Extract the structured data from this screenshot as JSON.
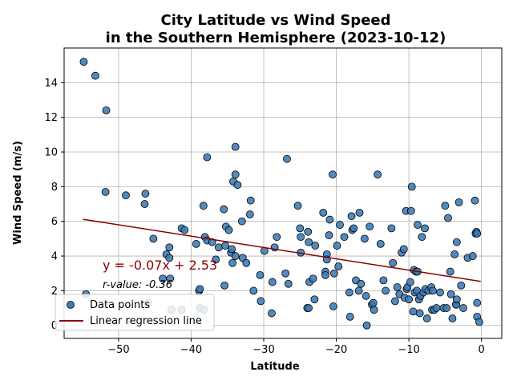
{
  "chart_data": {
    "type": "scatter",
    "title_lines": [
      "City Latitude vs Wind Speed",
      "in the Southern Hemisphere (2023-10-12)"
    ],
    "xlabel": "Latitude",
    "ylabel": "Wind Speed (m/s)",
    "xlim": [
      -57.5,
      2.8
    ],
    "ylim": [
      -0.75,
      16.0
    ],
    "xticks": [
      -50,
      -40,
      -30,
      -20,
      -10,
      0
    ],
    "yticks": [
      0,
      2,
      4,
      6,
      8,
      10,
      12,
      14
    ],
    "xtick_labels": [
      "−50",
      "−40",
      "−30",
      "−20",
      "−10",
      "0"
    ],
    "ytick_labels": [
      "0",
      "2",
      "4",
      "6",
      "8",
      "10",
      "12",
      "14"
    ],
    "grid": true,
    "legend_position": "lower-left",
    "colors": {
      "point_fill": "#3a7ab5",
      "point_edge": "#000000",
      "regression_line": "#8b0000",
      "equation_text": "#8b0000",
      "grid": "#b0b0b0"
    },
    "series": [
      {
        "name": "Data points",
        "points": [
          [
            -54.8,
            15.2
          ],
          [
            -53.2,
            14.4
          ],
          [
            -51.7,
            12.4
          ],
          [
            -51.8,
            7.7
          ],
          [
            -49.0,
            7.5
          ],
          [
            -54.5,
            1.8
          ],
          [
            -46.3,
            7.6
          ],
          [
            -46.4,
            7.0
          ],
          [
            -45.2,
            5.0
          ],
          [
            -45.9,
            1.3
          ],
          [
            -43.9,
            2.7
          ],
          [
            -42.9,
            2.7
          ],
          [
            -43.4,
            4.1
          ],
          [
            -43.0,
            4.5
          ],
          [
            -43.0,
            3.9
          ],
          [
            -42.7,
            0.9
          ],
          [
            -41.3,
            0.9
          ],
          [
            -41.3,
            5.6
          ],
          [
            -40.9,
            5.5
          ],
          [
            -39.3,
            4.7
          ],
          [
            -38.9,
            2.0
          ],
          [
            -38.8,
            2.1
          ],
          [
            -38.8,
            1.0
          ],
          [
            -38.2,
            0.9
          ],
          [
            -38.3,
            6.9
          ],
          [
            -38.1,
            5.1
          ],
          [
            -37.8,
            9.7
          ],
          [
            -37.8,
            4.9
          ],
          [
            -37.1,
            4.8
          ],
          [
            -36.6,
            3.8
          ],
          [
            -36.2,
            4.5
          ],
          [
            -35.5,
            6.7
          ],
          [
            -35.4,
            2.3
          ],
          [
            -35.3,
            4.6
          ],
          [
            -35.2,
            5.7
          ],
          [
            -34.8,
            5.5
          ],
          [
            -34.5,
            4.2
          ],
          [
            -34.4,
            4.4
          ],
          [
            -34.3,
            3.6
          ],
          [
            -34.2,
            8.3
          ],
          [
            -33.9,
            10.3
          ],
          [
            -33.9,
            8.7
          ],
          [
            -33.9,
            4.0
          ],
          [
            -33.6,
            8.1
          ],
          [
            -33.0,
            6.0
          ],
          [
            -32.9,
            3.9
          ],
          [
            -32.4,
            3.6
          ],
          [
            -31.9,
            6.4
          ],
          [
            -31.8,
            7.2
          ],
          [
            -31.4,
            2.0
          ],
          [
            -30.5,
            2.9
          ],
          [
            -30.4,
            1.4
          ],
          [
            -29.9,
            4.3
          ],
          [
            -28.9,
            0.7
          ],
          [
            -28.8,
            2.5
          ],
          [
            -28.5,
            4.5
          ],
          [
            -28.2,
            5.1
          ],
          [
            -27.0,
            3.0
          ],
          [
            -26.8,
            9.6
          ],
          [
            -26.6,
            2.4
          ],
          [
            -25.3,
            6.9
          ],
          [
            -25.0,
            5.6
          ],
          [
            -24.9,
            5.1
          ],
          [
            -24.9,
            4.2
          ],
          [
            -24.0,
            1.0
          ],
          [
            -23.9,
            5.4
          ],
          [
            -23.8,
            4.8
          ],
          [
            -23.8,
            1.0
          ],
          [
            -23.7,
            2.5
          ],
          [
            -23.2,
            2.7
          ],
          [
            -23.0,
            1.5
          ],
          [
            -22.9,
            4.6
          ],
          [
            -21.8,
            6.5
          ],
          [
            -21.5,
            3.1
          ],
          [
            -21.5,
            2.9
          ],
          [
            -21.3,
            4.1
          ],
          [
            -21.3,
            3.8
          ],
          [
            -21.0,
            5.2
          ],
          [
            -20.9,
            6.1
          ],
          [
            -20.5,
            8.7
          ],
          [
            -20.4,
            1.1
          ],
          [
            -20.3,
            3.0
          ],
          [
            -19.9,
            4.6
          ],
          [
            -19.7,
            3.4
          ],
          [
            -19.5,
            5.8
          ],
          [
            -18.9,
            5.1
          ],
          [
            -18.2,
            1.9
          ],
          [
            -18.1,
            0.5
          ],
          [
            -17.9,
            6.3
          ],
          [
            -17.8,
            5.5
          ],
          [
            -17.6,
            5.6
          ],
          [
            -17.3,
            2.6
          ],
          [
            -16.8,
            6.5
          ],
          [
            -16.9,
            2.0
          ],
          [
            -16.6,
            2.4
          ],
          [
            -16.1,
            5.0
          ],
          [
            -15.9,
            1.7
          ],
          [
            -15.8,
            0.0
          ],
          [
            -15.4,
            5.7
          ],
          [
            -15.1,
            1.2
          ],
          [
            -14.9,
            1.3
          ],
          [
            -14.8,
            0.9
          ],
          [
            -14.3,
            8.7
          ],
          [
            -13.9,
            4.7
          ],
          [
            -13.5,
            2.6
          ],
          [
            -13.2,
            2.0
          ],
          [
            -12.4,
            5.6
          ],
          [
            -12.2,
            3.6
          ],
          [
            -11.9,
            1.4
          ],
          [
            -11.6,
            2.2
          ],
          [
            -11.3,
            1.8
          ],
          [
            -11.0,
            4.2
          ],
          [
            -10.7,
            4.4
          ],
          [
            -10.6,
            1.6
          ],
          [
            -10.4,
            6.6
          ],
          [
            -10.3,
            2.1
          ],
          [
            -10.2,
            2.2
          ],
          [
            -10.0,
            1.5
          ],
          [
            -9.8,
            2.5
          ],
          [
            -9.7,
            6.6
          ],
          [
            -9.6,
            8.0
          ],
          [
            -9.4,
            0.8
          ],
          [
            -9.3,
            3.2
          ],
          [
            -9.2,
            1.9
          ],
          [
            -9.0,
            3.1
          ],
          [
            -8.9,
            2.0
          ],
          [
            -8.8,
            3.1
          ],
          [
            -8.8,
            5.8
          ],
          [
            -8.6,
            1.5
          ],
          [
            -8.5,
            0.7
          ],
          [
            -8.4,
            1.7
          ],
          [
            -8.2,
            5.1
          ],
          [
            -8.0,
            1.9
          ],
          [
            -7.8,
            5.6
          ],
          [
            -7.7,
            2.1
          ],
          [
            -7.5,
            0.4
          ],
          [
            -7.3,
            2.0
          ],
          [
            -6.9,
            2.2
          ],
          [
            -6.8,
            0.9
          ],
          [
            -6.7,
            2.0
          ],
          [
            -6.5,
            0.9
          ],
          [
            -6.2,
            1.0
          ],
          [
            -5.7,
            1.9
          ],
          [
            -5.2,
            1.0
          ],
          [
            -5.0,
            6.9
          ],
          [
            -4.8,
            1.0
          ],
          [
            -4.6,
            6.2
          ],
          [
            -4.3,
            3.1
          ],
          [
            -4.2,
            1.8
          ],
          [
            -4.0,
            0.4
          ],
          [
            -3.7,
            4.1
          ],
          [
            -3.5,
            1.2
          ],
          [
            -3.5,
            1.2
          ],
          [
            -3.4,
            1.5
          ],
          [
            -3.4,
            4.8
          ],
          [
            -3.1,
            7.1
          ],
          [
            -2.8,
            2.3
          ],
          [
            -2.5,
            1.0
          ],
          [
            -1.9,
            3.9
          ],
          [
            -1.2,
            4.0
          ],
          [
            -0.9,
            7.2
          ],
          [
            -0.8,
            5.3
          ],
          [
            -0.7,
            5.4
          ],
          [
            -0.6,
            1.3
          ],
          [
            -0.6,
            0.5
          ],
          [
            -0.3,
            0.2
          ],
          [
            -0.6,
            5.3
          ]
        ]
      }
    ],
    "regression": {
      "name": "Linear regression line",
      "slope": -0.07,
      "intercept": 2.53,
      "x_range": [
        -54.9,
        -0.1
      ],
      "y_start": 6.12,
      "y_end": 2.54
    },
    "equation_label": "y = -0.07x + 2.53",
    "rvalue_label": "r-value: -0.36"
  }
}
